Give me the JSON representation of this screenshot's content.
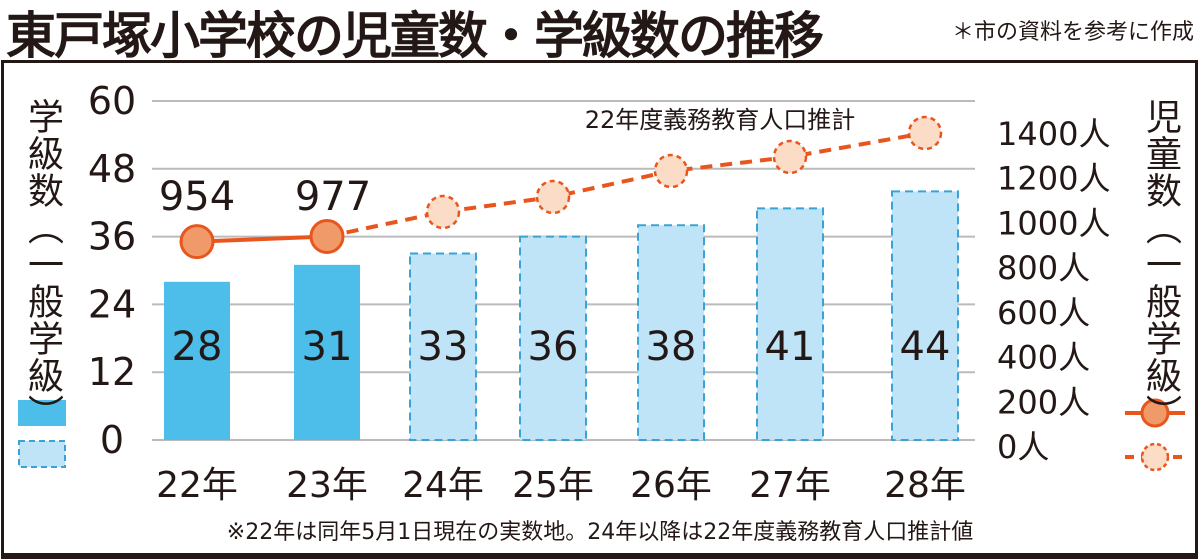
{
  "title": "東戸塚小学校の児童数・学級数の推移",
  "source_note": "＊市の資料を参考に作成",
  "footnote": "※22年は同年5月1日現在の実数地。24年以降は22年度義務教育人口推計値",
  "colors": {
    "actual_bar": "#4dbde9",
    "projected_bar": "#bfe4f7",
    "projected_bar_border": "#3aa3d6",
    "line": "#e8561e",
    "actual_point": "#f09a69",
    "projected_point": "#fbdcc6",
    "grid": "#bbbbbb"
  },
  "chart_data": {
    "type": "bar+line",
    "title": "東戸塚小学校の児童数・学級数の推移",
    "categories": [
      "22年",
      "23年",
      "24年",
      "25年",
      "26年",
      "27年",
      "28年"
    ],
    "left_axis": {
      "label": "学級数（一般学級）",
      "ylim": [
        0,
        60
      ],
      "ticks": [
        "0",
        "12",
        "24",
        "36",
        "48",
        "60"
      ],
      "tick_values": [
        0,
        12,
        24,
        36,
        48,
        60
      ]
    },
    "right_axis": {
      "label": "児童数（一般学級）",
      "ylim": [
        0,
        1400
      ],
      "ticks": [
        "0人",
        "200人",
        "400人",
        "600人",
        "800人",
        "1000人",
        "1200人",
        "1400人"
      ],
      "tick_values": [
        0,
        200,
        400,
        600,
        800,
        1000,
        1200,
        1400
      ]
    },
    "grid": true,
    "series": [
      {
        "name": "学級数",
        "type": "bar",
        "values": [
          28,
          31,
          33,
          36,
          38,
          41,
          44
        ],
        "labels": [
          "28",
          "31",
          "33",
          "36",
          "38",
          "41",
          "44"
        ],
        "projected": [
          false,
          false,
          true,
          true,
          true,
          true,
          true
        ]
      },
      {
        "name": "児童数",
        "type": "line",
        "values": [
          954,
          977,
          1087,
          1154,
          1270,
          1333,
          1440
        ],
        "labels": [
          "954",
          "977"
        ],
        "projected": [
          false,
          false,
          true,
          true,
          true,
          true,
          true
        ]
      }
    ],
    "annotation": "22年度義務教育人口推計",
    "legend": "left-bottom and right-bottom"
  }
}
